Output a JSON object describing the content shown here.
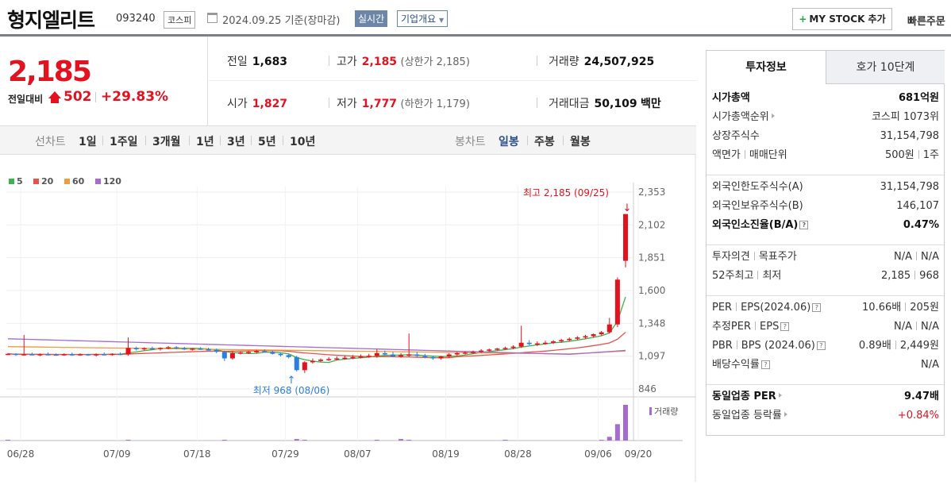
{
  "header": {
    "name": "형지엘리트",
    "code": "093240",
    "market": "코스피",
    "date": "2024.09.25 기준(장마감)",
    "realtime": "실시간",
    "company_info": "기업개요",
    "mystock": "MY STOCK 추가",
    "quick": "빠른주문"
  },
  "price": {
    "current": "2,185",
    "change_label": "전일대비",
    "change": "502",
    "change_pct": "+29.83%"
  },
  "stats": {
    "prev_label": "전일",
    "prev": "1,683",
    "high_label": "고가",
    "high": "2,185",
    "upper_limit": "(상한가 2,185)",
    "volume_label": "거래량",
    "volume": "24,507,925",
    "open_label": "시가",
    "open": "1,827",
    "low_label": "저가",
    "low": "1,777",
    "lower_limit": "(하한가 1,179)",
    "amount_label": "거래대금",
    "amount": "50,109",
    "amount_unit": "백만"
  },
  "toolbar": {
    "line_label": "선차트",
    "periods": [
      "1일",
      "1주일",
      "3개월",
      "1년",
      "3년",
      "5년",
      "10년"
    ],
    "candle_label": "봉차트",
    "candle_types": [
      "일봉",
      "주봉",
      "월봉"
    ],
    "candle_selected": "일봉"
  },
  "legend": [
    {
      "label": "5",
      "color": "#3cb24a"
    },
    {
      "label": "20",
      "color": "#e8504a"
    },
    {
      "label": "60",
      "color": "#f29b3a"
    },
    {
      "label": "120",
      "color": "#a56bd1"
    }
  ],
  "chart_data": {
    "type": "candlestick",
    "x_ticks": [
      "06/28",
      "07/09",
      "07/18",
      "07/29",
      "08/07",
      "08/19",
      "08/28",
      "09/06",
      "09/20"
    ],
    "y_ticks": [
      "2,353",
      "2,102",
      "1,851",
      "1,600",
      "1,348",
      "1,097",
      "846"
    ],
    "ylim": [
      846,
      2353
    ],
    "high_annotation": "최고 2,185 (09/25)",
    "low_annotation": "최저 968 (08/06)",
    "volume_label": "거래량",
    "candles": [
      [
        1110,
        1120,
        1105,
        1115
      ],
      [
        1115,
        1120,
        1100,
        1108
      ],
      [
        1108,
        1260,
        1100,
        1112
      ],
      [
        1112,
        1125,
        1105,
        1108
      ],
      [
        1108,
        1118,
        1098,
        1112
      ],
      [
        1112,
        1125,
        1105,
        1110
      ],
      [
        1110,
        1118,
        1100,
        1105
      ],
      [
        1105,
        1118,
        1100,
        1112
      ],
      [
        1112,
        1125,
        1100,
        1110
      ],
      [
        1110,
        1118,
        1100,
        1112
      ],
      [
        1112,
        1115,
        1100,
        1108
      ],
      [
        1108,
        1118,
        1095,
        1112
      ],
      [
        1112,
        1125,
        1105,
        1110
      ],
      [
        1110,
        1120,
        1100,
        1115
      ],
      [
        1115,
        1125,
        1105,
        1112
      ],
      [
        1110,
        1240,
        1100,
        1160
      ],
      [
        1160,
        1170,
        1140,
        1150
      ],
      [
        1150,
        1165,
        1140,
        1158
      ],
      [
        1158,
        1170,
        1145,
        1152
      ],
      [
        1152,
        1165,
        1140,
        1160
      ],
      [
        1160,
        1175,
        1150,
        1165
      ],
      [
        1165,
        1175,
        1150,
        1158
      ],
      [
        1158,
        1168,
        1145,
        1150
      ],
      [
        1150,
        1160,
        1140,
        1155
      ],
      [
        1155,
        1165,
        1145,
        1150
      ],
      [
        1150,
        1162,
        1140,
        1145
      ],
      [
        1145,
        1155,
        1120,
        1130
      ],
      [
        1130,
        1140,
        1060,
        1080
      ],
      [
        1080,
        1140,
        1070,
        1120
      ],
      [
        1120,
        1135,
        1110,
        1125
      ],
      [
        1125,
        1140,
        1115,
        1130
      ],
      [
        1130,
        1145,
        1120,
        1135
      ],
      [
        1135,
        1150,
        1125,
        1130
      ],
      [
        1130,
        1140,
        1110,
        1115
      ],
      [
        1115,
        1125,
        1095,
        1105
      ],
      [
        1105,
        1115,
        1080,
        1090
      ],
      [
        1090,
        1100,
        980,
        990
      ],
      [
        990,
        1060,
        968,
        1050
      ],
      [
        1050,
        1080,
        1040,
        1060
      ],
      [
        1060,
        1080,
        1050,
        1070
      ],
      [
        1070,
        1090,
        1060,
        1075
      ],
      [
        1075,
        1095,
        1065,
        1080
      ],
      [
        1080,
        1100,
        1070,
        1085
      ],
      [
        1085,
        1105,
        1075,
        1090
      ],
      [
        1090,
        1110,
        1080,
        1095
      ],
      [
        1095,
        1115,
        1085,
        1100
      ],
      [
        1100,
        1150,
        1085,
        1120
      ],
      [
        1120,
        1140,
        1100,
        1110
      ],
      [
        1110,
        1130,
        1090,
        1095
      ],
      [
        1095,
        1120,
        1085,
        1105
      ],
      [
        1105,
        1270,
        1090,
        1110
      ],
      [
        1110,
        1130,
        1090,
        1100
      ],
      [
        1100,
        1115,
        1080,
        1090
      ],
      [
        1090,
        1100,
        1070,
        1080
      ],
      [
        1080,
        1100,
        1070,
        1095
      ],
      [
        1095,
        1120,
        1085,
        1110
      ],
      [
        1110,
        1130,
        1100,
        1120
      ],
      [
        1120,
        1135,
        1110,
        1125
      ],
      [
        1125,
        1140,
        1115,
        1130
      ],
      [
        1130,
        1150,
        1120,
        1140
      ],
      [
        1140,
        1155,
        1130,
        1148
      ],
      [
        1148,
        1160,
        1140,
        1155
      ],
      [
        1155,
        1170,
        1145,
        1160
      ],
      [
        1160,
        1180,
        1150,
        1170
      ],
      [
        1170,
        1330,
        1160,
        1200
      ],
      [
        1200,
        1220,
        1180,
        1190
      ],
      [
        1190,
        1210,
        1175,
        1195
      ],
      [
        1195,
        1215,
        1185,
        1200
      ],
      [
        1200,
        1220,
        1190,
        1210
      ],
      [
        1210,
        1230,
        1200,
        1220
      ],
      [
        1220,
        1240,
        1210,
        1230
      ],
      [
        1230,
        1250,
        1220,
        1240
      ],
      [
        1240,
        1260,
        1230,
        1250
      ],
      [
        1250,
        1270,
        1240,
        1265
      ],
      [
        1265,
        1290,
        1255,
        1280
      ],
      [
        1280,
        1390,
        1270,
        1340
      ],
      [
        1340,
        1700,
        1320,
        1683
      ],
      [
        1827,
        2185,
        1777,
        2185
      ]
    ],
    "volume": [
      1,
      0,
      0,
      0,
      0,
      0,
      0,
      0,
      0,
      0,
      0,
      0,
      0,
      0,
      0,
      1,
      0,
      0,
      0,
      0,
      0,
      0,
      0,
      0,
      0,
      0,
      0,
      1,
      0,
      0,
      0,
      0,
      0,
      0,
      0,
      0,
      2,
      1,
      0,
      0,
      0,
      0,
      0,
      0,
      0,
      0,
      1,
      0,
      0,
      2,
      1,
      0,
      0,
      0,
      0,
      0,
      0,
      0,
      0,
      0,
      0,
      0,
      1,
      0,
      0,
      0,
      0,
      0,
      0,
      0,
      0,
      0,
      0,
      0,
      1,
      5,
      22,
      48
    ]
  },
  "side": {
    "tab_active": "투자정보",
    "tab_other": "호가 10단계",
    "g1": [
      {
        "k": "시가총액",
        "v": "681억원",
        "bold": true
      },
      {
        "k": "시가총액순위",
        "v": "코스피 1073위",
        "tri": true
      },
      {
        "k": "상장주식수",
        "v": "31,154,798"
      },
      {
        "k": "액면가",
        "k2": "매매단위",
        "v": "500원",
        "v2": "1주"
      }
    ],
    "g2": [
      {
        "k": "외국인한도주식수(A)",
        "v": "31,154,798"
      },
      {
        "k": "외국인보유주식수(B)",
        "v": "146,107"
      },
      {
        "k": "외국인소진율(B/A)",
        "v": "0.47%",
        "bold": true,
        "q": true
      }
    ],
    "g3": [
      {
        "k": "투자의견",
        "k2": "목표주가",
        "v": "N/A",
        "v2": "N/A"
      },
      {
        "k": "52주최고",
        "k2": "최저",
        "v": "2,185",
        "v2": "968"
      }
    ],
    "g4": [
      {
        "k": "PER",
        "k2": "EPS(2024.06)",
        "v": "10.66배",
        "v2": "205원",
        "q": true
      },
      {
        "k": "추정PER",
        "k2": "EPS",
        "v": "N/A",
        "v2": "N/A",
        "q": true
      },
      {
        "k": "PBR",
        "k2": "BPS (2024.06)",
        "v": "0.89배",
        "v2": "2,449원",
        "q": true
      },
      {
        "k": "배당수익률",
        "v": "N/A",
        "q": true
      }
    ],
    "g5": [
      {
        "k": "동일업종 PER",
        "v": "9.47배",
        "bold": true,
        "tri": true
      },
      {
        "k": "동일업종 등락률",
        "v": "+0.84%",
        "red": true,
        "tri": true
      }
    ]
  }
}
